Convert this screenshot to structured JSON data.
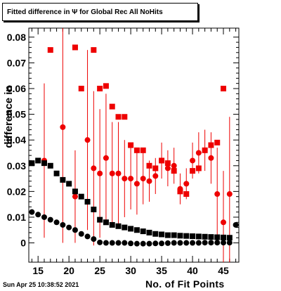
{
  "title": "Fitted difference in  Ψ  for Global Rec All NoHits",
  "footer": "Sun Apr 25 10:38:52 2021",
  "chart_data": {
    "type": "scatter",
    "title": "Fitted difference in  Ψ  for Global Rec All NoHits",
    "xlabel": "No. of Fit Points",
    "ylabel": "difference in",
    "xlim": [
      13.5,
      47.5
    ],
    "ylim": [
      -0.0075,
      0.0835
    ],
    "x_ticks": [
      15,
      20,
      25,
      30,
      35,
      40,
      45
    ],
    "x_tick_labels": [
      "15",
      "20",
      "25",
      "30",
      "35",
      "40",
      "45"
    ],
    "y_ticks": [
      0,
      0.01,
      0.02,
      0.03,
      0.04,
      0.05,
      0.06,
      0.07,
      0.08
    ],
    "y_tick_labels": [
      "0",
      "0.01",
      "0.02",
      "0.03",
      "0.04",
      "0.05",
      "0.06",
      "0.07",
      "0.08"
    ],
    "series": [
      {
        "marker": "square",
        "color": "#ee0000",
        "points": [
          {
            "x": 17,
            "y": 0.075
          },
          {
            "x": 21,
            "y": 0.076
          },
          {
            "x": 22,
            "y": 0.06
          },
          {
            "x": 24,
            "y": 0.075
          },
          {
            "x": 25,
            "y": 0.06
          },
          {
            "x": 26,
            "y": 0.061
          },
          {
            "x": 27,
            "y": 0.053
          },
          {
            "x": 28,
            "y": 0.049
          },
          {
            "x": 29,
            "y": 0.049
          },
          {
            "x": 30,
            "y": 0.038
          },
          {
            "x": 31,
            "y": 0.036
          },
          {
            "x": 32,
            "y": 0.036
          },
          {
            "x": 33,
            "y": 0.03
          },
          {
            "x": 34,
            "y": 0.029
          },
          {
            "x": 35,
            "y": 0.032
          },
          {
            "x": 36,
            "y": 0.031
          },
          {
            "x": 37,
            "y": 0.028
          },
          {
            "x": 38,
            "y": 0.02
          },
          {
            "x": 39,
            "y": 0.019
          },
          {
            "x": 40,
            "y": 0.028
          },
          {
            "x": 41,
            "y": 0.029
          },
          {
            "x": 42,
            "y": 0.036
          },
          {
            "x": 43,
            "y": 0.038
          },
          {
            "x": 44,
            "y": 0.039
          },
          {
            "x": 45,
            "y": 0.06
          }
        ]
      },
      {
        "marker": "circle",
        "color": "#ee0000",
        "points": [
          {
            "x": 16,
            "y": 0.032,
            "err": 0.03
          },
          {
            "x": 19,
            "y": 0.045,
            "err": 0.045
          },
          {
            "x": 21,
            "y": 0.018,
            "err": 0.018
          },
          {
            "x": 23,
            "y": 0.04,
            "err": 0.035
          },
          {
            "x": 24,
            "y": 0.029,
            "err": 0.03
          },
          {
            "x": 25,
            "y": 0.027,
            "err": 0.025
          },
          {
            "x": 26,
            "y": 0.033,
            "err": 0.025
          },
          {
            "x": 27,
            "y": 0.027,
            "err": 0.02
          },
          {
            "x": 28,
            "y": 0.027,
            "err": 0.02
          },
          {
            "x": 29,
            "y": 0.025,
            "err": 0.015
          },
          {
            "x": 30,
            "y": 0.025,
            "err": 0.012
          },
          {
            "x": 31,
            "y": 0.023,
            "err": 0.012
          },
          {
            "x": 32,
            "y": 0.025,
            "err": 0.01
          },
          {
            "x": 33,
            "y": 0.024,
            "err": 0.008
          },
          {
            "x": 34,
            "y": 0.026,
            "err": 0.007
          },
          {
            "x": 35,
            "y": 0.032,
            "err": 0.007
          },
          {
            "x": 36,
            "y": 0.029,
            "err": 0.007
          },
          {
            "x": 37,
            "y": 0.03,
            "err": 0.007
          },
          {
            "x": 38,
            "y": 0.021,
            "err": 0.006
          },
          {
            "x": 39,
            "y": 0.023,
            "err": 0.006
          },
          {
            "x": 40,
            "y": 0.032,
            "err": 0.007
          },
          {
            "x": 41,
            "y": 0.035,
            "err": 0.008
          },
          {
            "x": 42,
            "y": 0.036,
            "err": 0.008
          },
          {
            "x": 43,
            "y": 0.033,
            "err": 0.01
          },
          {
            "x": 44,
            "y": 0.019,
            "err": 0.018
          },
          {
            "x": 45,
            "y": 0.008,
            "err": 0.02
          },
          {
            "x": 46,
            "y": 0.019,
            "err": 0.03
          }
        ]
      },
      {
        "marker": "square",
        "color": "#000000",
        "points": [
          {
            "x": 14,
            "y": 0.031
          },
          {
            "x": 15,
            "y": 0.032
          },
          {
            "x": 16,
            "y": 0.031
          },
          {
            "x": 17,
            "y": 0.03
          },
          {
            "x": 18,
            "y": 0.027
          },
          {
            "x": 19,
            "y": 0.0245
          },
          {
            "x": 20,
            "y": 0.023
          },
          {
            "x": 21,
            "y": 0.02
          },
          {
            "x": 22,
            "y": 0.018
          },
          {
            "x": 23,
            "y": 0.016
          },
          {
            "x": 24,
            "y": 0.013
          },
          {
            "x": 25,
            "y": 0.009
          },
          {
            "x": 26,
            "y": 0.008
          },
          {
            "x": 27,
            "y": 0.007
          },
          {
            "x": 28,
            "y": 0.0065
          },
          {
            "x": 29,
            "y": 0.006
          },
          {
            "x": 30,
            "y": 0.0055
          },
          {
            "x": 31,
            "y": 0.005
          },
          {
            "x": 32,
            "y": 0.0045
          },
          {
            "x": 33,
            "y": 0.004
          },
          {
            "x": 34,
            "y": 0.0035
          },
          {
            "x": 35,
            "y": 0.0033
          },
          {
            "x": 36,
            "y": 0.003
          },
          {
            "x": 37,
            "y": 0.003
          },
          {
            "x": 38,
            "y": 0.0028
          },
          {
            "x": 39,
            "y": 0.0027
          },
          {
            "x": 40,
            "y": 0.0026
          },
          {
            "x": 41,
            "y": 0.0025
          },
          {
            "x": 42,
            "y": 0.0024
          },
          {
            "x": 43,
            "y": 0.0023
          },
          {
            "x": 44,
            "y": 0.0022
          },
          {
            "x": 45,
            "y": 0.0021
          },
          {
            "x": 46,
            "y": 0.002
          }
        ]
      },
      {
        "marker": "circle",
        "color": "#000000",
        "points": [
          {
            "x": 14,
            "y": 0.012
          },
          {
            "x": 15,
            "y": 0.011
          },
          {
            "x": 16,
            "y": 0.01
          },
          {
            "x": 17,
            "y": 0.009
          },
          {
            "x": 18,
            "y": 0.008
          },
          {
            "x": 19,
            "y": 0.007
          },
          {
            "x": 20,
            "y": 0.006
          },
          {
            "x": 21,
            "y": 0.005
          },
          {
            "x": 22,
            "y": 0.0035
          },
          {
            "x": 23,
            "y": 0.0025
          },
          {
            "x": 24,
            "y": 0.0015
          },
          {
            "x": 25,
            "y": 0.0002
          },
          {
            "x": 26,
            "y": 0.0
          },
          {
            "x": 27,
            "y": 0.0
          },
          {
            "x": 28,
            "y": 0.0
          },
          {
            "x": 29,
            "y": 0.0
          },
          {
            "x": 30,
            "y": -0.0002
          },
          {
            "x": 31,
            "y": -0.0003
          },
          {
            "x": 32,
            "y": -0.0003
          },
          {
            "x": 33,
            "y": -0.0003
          },
          {
            "x": 34,
            "y": -0.0002
          },
          {
            "x": 35,
            "y": -0.0002
          },
          {
            "x": 36,
            "y": -0.0001
          },
          {
            "x": 37,
            "y": 0.0
          },
          {
            "x": 38,
            "y": 0.0
          },
          {
            "x": 39,
            "y": 0.0
          },
          {
            "x": 40,
            "y": 0.0
          },
          {
            "x": 41,
            "y": 0.0
          },
          {
            "x": 42,
            "y": 0.0001
          },
          {
            "x": 43,
            "y": 0.0001
          },
          {
            "x": 44,
            "y": 0.0001
          },
          {
            "x": 45,
            "y": 0.0001
          },
          {
            "x": 46,
            "y": 0.0001
          },
          {
            "x": 47,
            "y": 0.007
          }
        ]
      }
    ]
  }
}
